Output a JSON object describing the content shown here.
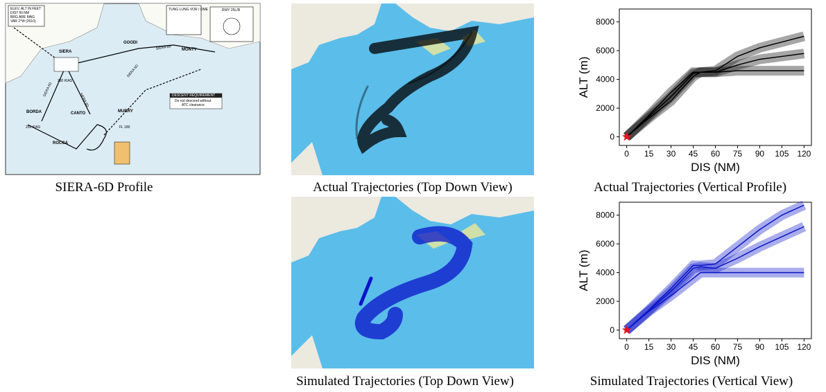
{
  "procedure_chart": {
    "notes": [
      "ELEV, ALT IN FEET",
      "DIST IN NM",
      "BRG ARE MAG",
      "VAR 2°W (2010)"
    ],
    "navaid": "TUNG LUNG VOR / DME",
    "runway": "RWY 25L/R",
    "waypoints": [
      "SIERA",
      "GOODI",
      "MONTY",
      "BORDA",
      "CANTO",
      "MURRY",
      "ROCCA"
    ],
    "route_labels": [
      "SIERA 6D",
      "SIERA 6D",
      "SIERA 6D",
      "SIERA 6B"
    ],
    "speed_labels": [
      "280 KIAS",
      "250 KIAS",
      "FL 180"
    ],
    "box_title": "DESCENT REQUIREMENT",
    "box_text": [
      "Do not descend without",
      "ATC clearance"
    ]
  },
  "captions": [
    "SIERA-6D Profile",
    "Actual Trajectories (Top Down View)",
    "Actual Trajectories (Vertical Profile)",
    "Simulated Trajectories (Top Down View)",
    "Simulated Trajectories (Vertical View)"
  ],
  "chart_data": [
    {
      "type": "line",
      "xlabel": "DIS (NM)",
      "ylabel": "ALT (m)",
      "x": [
        0,
        15,
        30,
        45,
        50,
        60,
        75,
        90,
        105,
        120
      ],
      "series": [
        {
          "color": "#000000",
          "values": [
            0,
            1300,
            2500,
            4200,
            4500,
            4500,
            4600,
            4600,
            4600,
            4600
          ]
        },
        {
          "color": "#000000",
          "values": [
            0,
            1400,
            2800,
            4400,
            4500,
            4500,
            5000,
            5400,
            5600,
            5800
          ]
        },
        {
          "color": "#000000",
          "values": [
            0,
            1500,
            3100,
            4500,
            4500,
            4600,
            5600,
            6200,
            6600,
            7000
          ]
        }
      ],
      "marker": {
        "x": 0,
        "y": 0,
        "color": "#e8141e"
      },
      "xlim": [
        -5,
        125
      ],
      "ylim": [
        -600,
        8900
      ],
      "xticks": [
        0,
        15,
        30,
        45,
        60,
        75,
        90,
        105,
        120
      ],
      "yticks": [
        0,
        2000,
        4000,
        6000,
        8000
      ]
    },
    {
      "type": "line",
      "xlabel": "DIS (NM)",
      "ylabel": "ALT (m)",
      "x": [
        0,
        15,
        30,
        45,
        50,
        60,
        75,
        90,
        105,
        120
      ],
      "series": [
        {
          "color": "#0a14c8",
          "values": [
            0,
            1300,
            2400,
            3600,
            4000,
            4000,
            4000,
            4000,
            4000,
            4000
          ]
        },
        {
          "color": "#0a14c8",
          "values": [
            0,
            1350,
            2700,
            4300,
            4400,
            4300,
            5000,
            5800,
            6500,
            7200
          ]
        },
        {
          "color": "#0a14c8",
          "values": [
            0,
            1400,
            2900,
            4500,
            4500,
            4600,
            5800,
            7000,
            8000,
            8700
          ]
        }
      ],
      "marker": {
        "x": 0,
        "y": 0,
        "color": "#e8141e"
      },
      "xlim": [
        -5,
        125
      ],
      "ylim": [
        -600,
        8900
      ],
      "xticks": [
        0,
        15,
        30,
        45,
        60,
        75,
        90,
        105,
        120
      ],
      "yticks": [
        0,
        2000,
        4000,
        6000,
        8000
      ]
    }
  ]
}
